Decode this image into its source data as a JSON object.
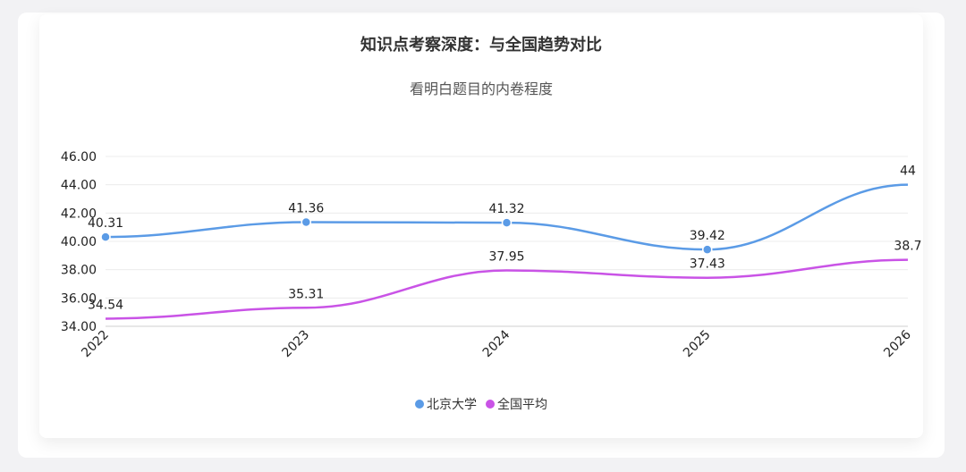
{
  "chart_data": {
    "type": "line",
    "title": "知识点考察深度：与全国趋势对比",
    "subtitle": "看明白题目的内卷程度",
    "categories": [
      "2022",
      "2023",
      "2024",
      "2025",
      "2026"
    ],
    "y_ticks": [
      "34.00",
      "36.00",
      "38.00",
      "40.00",
      "42.00",
      "44.00",
      "46.00"
    ],
    "ylim": [
      34,
      46
    ],
    "grid": true,
    "legend_position": "bottom",
    "series": [
      {
        "name": "北京大学",
        "color": "#5b9be6",
        "values": [
          40.31,
          41.36,
          41.32,
          39.42,
          44
        ],
        "labels": [
          "40.31",
          "41.36",
          "41.32",
          "39.42",
          "44"
        ]
      },
      {
        "name": "全国平均",
        "color": "#c953e6",
        "values": [
          34.54,
          35.31,
          37.95,
          37.43,
          38.7
        ],
        "labels": [
          "34.54",
          "35.31",
          "37.95",
          "37.43",
          "38.7"
        ]
      }
    ]
  }
}
